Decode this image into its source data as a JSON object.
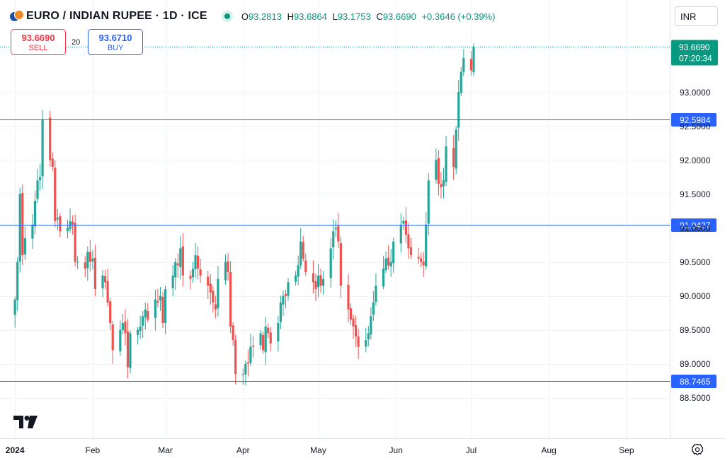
{
  "header": {
    "title": "EURO / INDIAN RUPEE · 1D · ICE",
    "ohlc": [
      {
        "key": "O",
        "value": "93.2813"
      },
      {
        "key": "H",
        "value": "93.6864"
      },
      {
        "key": "L",
        "value": "93.1753"
      },
      {
        "key": "C",
        "value": "93.6690"
      }
    ],
    "change": "+0.3646 (+0.39%)"
  },
  "trade": {
    "sell_price": "93.6690",
    "sell_label": "SELL",
    "buy_price": "93.6710",
    "buy_label": "BUY",
    "spread": "20"
  },
  "currency": "INR",
  "colors": {
    "up": "#26a69a",
    "down": "#ef5350",
    "line": "#2962ff",
    "price_tag": "#089981"
  },
  "icons": [
    "currency-flag-icon",
    "market-open-icon",
    "tradingview-logo-icon",
    "settings-icon"
  ],
  "chart_data": {
    "type": "candlestick",
    "ylim": [
      88.3,
      94.0
    ],
    "price_axis_ticks": [
      "88.5000",
      "89.0000",
      "89.5000",
      "90.0000",
      "90.5000",
      "91.0000",
      "91.5000",
      "92.0000",
      "92.5000",
      "93.0000"
    ],
    "time_axis": [
      {
        "label": "2024",
        "date": "2024-01-01",
        "bold": true
      },
      {
        "label": "Feb",
        "date": "2024-02-01"
      },
      {
        "label": "Mar",
        "date": "2024-03-01"
      },
      {
        "label": "Apr",
        "date": "2024-04-01"
      },
      {
        "label": "May",
        "date": "2024-05-01"
      },
      {
        "label": "Jun",
        "date": "2024-06-01"
      },
      {
        "label": "Jul",
        "date": "2024-07-01"
      },
      {
        "label": "Aug",
        "date": "2024-08-01"
      },
      {
        "label": "Sep",
        "date": "2024-09-01"
      }
    ],
    "horizontal_lines": [
      {
        "price": 92.5984,
        "label": "92.5984"
      },
      {
        "price": 91.0437,
        "label": "91.0437"
      },
      {
        "price": 88.7465,
        "label": "88.7465"
      }
    ],
    "last_price": {
      "price": 93.669,
      "label": "93.6690",
      "countdown": "07:20:34"
    },
    "closes": [
      89.95,
      90.5,
      91.5,
      90.6,
      90.85,
      91.05,
      91.4,
      91.7,
      91.75,
      92.6,
      92.0,
      91.9,
      91.1,
      91.15,
      90.95,
      91.0,
      91.1,
      91.05,
      90.5,
      90.5,
      90.4,
      90.65,
      90.5,
      90.55,
      90.1,
      90.3,
      90.2,
      89.9,
      89.6,
      89.2,
      89.5,
      89.6,
      89.45,
      88.95,
      89.45,
      89.5,
      89.55,
      89.7,
      89.8,
      89.65,
      89.95,
      89.9,
      90.0,
      89.6,
      90.1,
      90.3,
      90.5,
      90.45,
      90.7,
      90.3,
      90.25,
      90.4,
      90.6,
      90.4,
      90.3,
      90.15,
      90.05,
      89.9,
      89.8,
      90.25,
      90.5,
      90.35,
      89.55,
      89.35,
      88.85,
      88.85,
      89.0,
      89.0,
      89.25,
      89.25,
      89.45,
      89.2,
      89.55,
      89.45,
      89.3,
      89.6,
      89.9,
      90.0,
      90.0,
      90.2,
      90.3,
      90.45,
      90.8,
      90.55,
      90.35,
      90.2,
      90.1,
      90.3,
      90.15,
      90.25,
      90.7,
      90.95,
      91.0,
      90.8,
      90.15,
      89.8,
      89.65,
      89.55,
      89.4,
      89.25,
      89.35,
      89.45,
      89.7,
      89.9,
      90.15,
      90.4,
      90.55,
      90.45,
      90.5,
      90.8,
      91.05,
      91.1,
      90.9,
      90.7,
      90.6,
      90.55,
      90.5,
      90.45,
      91.05,
      91.7,
      92.0,
      91.65,
      91.6,
      91.7,
      92.2,
      91.9,
      92.45,
      93.0,
      93.3,
      93.5,
      93.32,
      93.669
    ]
  }
}
